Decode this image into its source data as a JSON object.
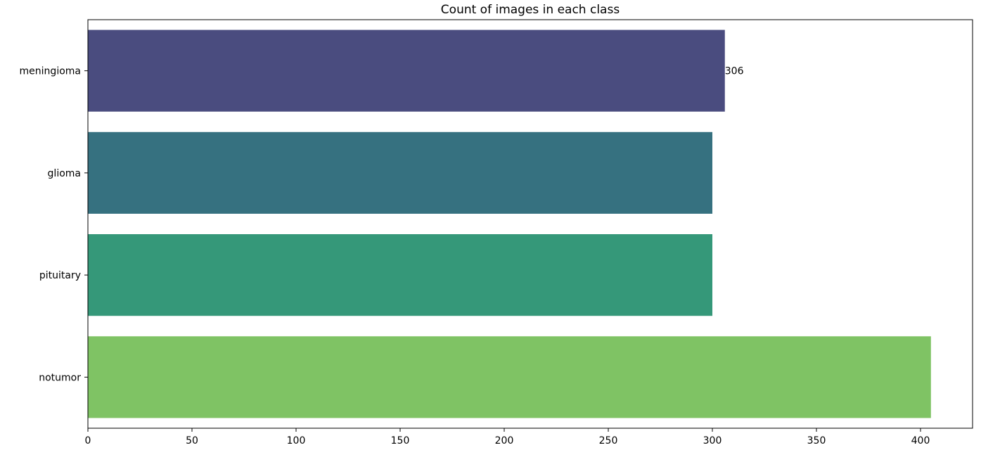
{
  "chart_data": {
    "type": "bar",
    "orientation": "horizontal",
    "title": "Count of images in each class",
    "xlabel": "",
    "ylabel": "",
    "categories": [
      "meningioma",
      "glioma",
      "pituitary",
      "notumor"
    ],
    "values": [
      306,
      300,
      300,
      405
    ],
    "colors": [
      "#4a4c7f",
      "#367180",
      "#359879",
      "#7fc364"
    ],
    "xlim": [
      0,
      425
    ],
    "x_ticks": [
      0,
      50,
      100,
      150,
      200,
      250,
      300,
      350,
      400
    ],
    "data_labels": [
      {
        "category": "meningioma",
        "text": "306"
      }
    ],
    "grid": false,
    "legend": "none"
  }
}
